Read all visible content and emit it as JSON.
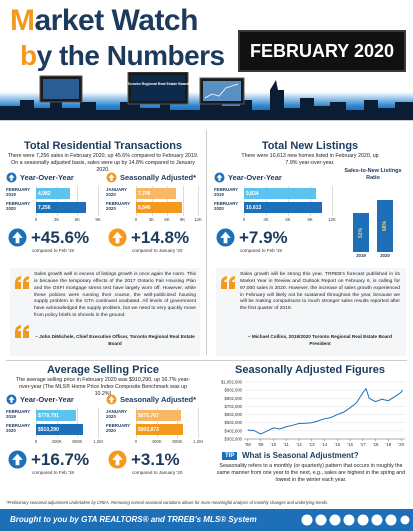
{
  "header": {
    "title_line1": "Market Watch",
    "title_line2": "by the Numbers",
    "date": "FEBRUARY 2020",
    "screen_text": "Toronto Regional Real Estate Board"
  },
  "transactions": {
    "title": "Total Residential Transactions",
    "description": "There were 7,256 sales in February 2020, up 45.6% compared to February 2019. On a seasonally adjusted basis, sales were up by 14.8% compared to January 2020.",
    "charts": [
      {
        "type": "hbar",
        "title": "Year-Over-Year",
        "categories": [
          "FEBRUARY 2019",
          "FEBRUARY 2020"
        ],
        "values": [
          4982,
          7256
        ],
        "value_labels": [
          "4,982",
          "7,256"
        ],
        "colors": [
          "#5bc3ee",
          "#1d6fb8"
        ],
        "xlim": [
          0,
          9000
        ],
        "xticks": [
          0,
          {
            "value": 3000,
            "label": "3K"
          },
          {
            "value": 6000,
            "label": "6K"
          },
          {
            "value": 9000,
            "label": "9K"
          }
        ],
        "change": "+45.6%",
        "change_note": "compared to Feb '19"
      },
      {
        "type": "hbar",
        "title": "Seasonally Adjusted*",
        "categories": [
          "JANUARY 2020",
          "FEBRUARY 2020"
        ],
        "values": [
          7706,
          8846
        ],
        "value_labels": [
          "7,706",
          "8,846"
        ],
        "colors": [
          "#f7b765",
          "#f39a1e"
        ],
        "xlim": [
          0,
          12000
        ],
        "xticks": [
          0,
          {
            "value": 3000,
            "label": "3K"
          },
          {
            "value": 6000,
            "label": "6K"
          },
          {
            "value": 9000,
            "label": "9K"
          },
          {
            "value": 12000,
            "label": "12K"
          }
        ],
        "change": "+14.8%",
        "change_note": "compared to January '20"
      }
    ],
    "quote": {
      "text": "Sales growth well in excess of listings growth is once again the norm. This is because the temporary effects of the 2017 Ontario Fair Housing Plan and the OSFI mortgage stress test have largely worn off. However, while these policies were running their course, the well-publicized housing supply problem in the GTA continued unabated. All levels of government have acknowledged the supply problem, but we need to very quickly move from policy briefs to shovels in the ground.",
      "author": "– John DiMichele, Chief Executive Officer, Toronto Regional Real Estate Board"
    }
  },
  "listings": {
    "title": "Total New Listings",
    "description": "There were 10,613 new homes listed in February 2020, up 7.9% year-over-year.",
    "charts": [
      {
        "type": "hbar",
        "title": "Year-Over-Year",
        "categories": [
          "FEBRUARY 2019",
          "FEBRUARY 2020"
        ],
        "values": [
          9834,
          10613
        ],
        "value_labels": [
          "9,834",
          "10,613"
        ],
        "colors": [
          "#5bc3ee",
          "#1d6fb8"
        ],
        "xlim": [
          0,
          12000
        ],
        "xticks": [
          0,
          {
            "value": 3000,
            "label": "3K"
          },
          {
            "value": 6000,
            "label": "6K"
          },
          {
            "value": 9000,
            "label": "9K"
          },
          {
            "value": 12000,
            "label": "12K"
          }
        ],
        "change": "+7.9%",
        "change_note": "compared to Feb '19"
      },
      {
        "type": "vbar",
        "title": "Sales-to-New Listings Ratio",
        "categories": [
          "2019",
          "2020"
        ],
        "values": [
          51,
          68
        ],
        "value_labels": [
          "51%",
          "68%"
        ],
        "colors": [
          "#1d6fb8",
          "#1d6fb8"
        ],
        "ylim": [
          0,
          100
        ]
      }
    ],
    "quote": {
      "text": "Sales growth will be strong this year. TRREB's forecast published in its Market Year in Review and Outlook Report on February 6, is calling for 97,000 sales in 2020. However, the increase of sales growth experienced in February will likely not be sustained throughout the year, because we will be making comparisons to much stronger sales results reported after the first quarter of 2019.",
      "author": "– Michael Collins, 2019/2020 Toronto Regional Real Estate Board President"
    }
  },
  "price": {
    "title": "Average Selling Price",
    "description": "The average selling price in February 2020 was $910,290, up 16.7% year-over-year (The MLS® Home Price Index Composite Benchmark was up 10.2%)",
    "charts": [
      {
        "type": "hbar",
        "title": "Year-Over-Year",
        "categories": [
          "FEBRUARY 2019",
          "FEBRUARY 2020"
        ],
        "values": [
          779791,
          910290
        ],
        "value_labels": [
          "$779,791",
          "$910,290"
        ],
        "colors": [
          "#5bc3ee",
          "#1d6fb8"
        ],
        "xlim": [
          0,
          1200000
        ],
        "xticks": [
          0,
          {
            "value": 400000,
            "label": "400K"
          },
          {
            "value": 800000,
            "label": "800K"
          },
          {
            "value": 1200000,
            "label": "1.2M"
          }
        ],
        "change": "+16.7%",
        "change_note": "compared to Feb '19"
      },
      {
        "type": "hbar",
        "title": "Seasonally Adjusted*",
        "categories": [
          "JANUARY 2020",
          "FEBRUARY 2020"
        ],
        "values": [
          875767,
          902873
        ],
        "value_labels": [
          "$875,767",
          "$902,873"
        ],
        "colors": [
          "#f7b765",
          "#f39a1e"
        ],
        "xlim": [
          0,
          1200000
        ],
        "xticks": [
          0,
          {
            "value": 400000,
            "label": "400K"
          },
          {
            "value": 800000,
            "label": "800K"
          },
          {
            "value": 1200000,
            "label": "1.2M"
          }
        ],
        "change": "+3.1%",
        "change_note": "compared to January '20"
      }
    ]
  },
  "seasonal": {
    "title": "Seasonally Adjusted Figures",
    "chart": {
      "type": "line",
      "color": "#1d6fb8",
      "x": [
        2008,
        2008.5,
        2009,
        2009.5,
        2010,
        2010.5,
        2011,
        2011.5,
        2012,
        2012.5,
        2013,
        2013.5,
        2014,
        2014.5,
        2015,
        2015.5,
        2016,
        2016.5,
        2017,
        2017.25,
        2017.5,
        2018,
        2018.5,
        2019,
        2019.5,
        2020,
        2020.1
      ],
      "values": [
        412000,
        405000,
        362000,
        400000,
        438000,
        425000,
        452000,
        470000,
        492000,
        495000,
        502000,
        525000,
        550000,
        565000,
        602000,
        632000,
        685000,
        745000,
        870000,
        920000,
        800000,
        762000,
        790000,
        772000,
        822000,
        875767,
        902873
      ],
      "xlim": [
        2007.7,
        2020.3
      ],
      "xticks": [
        {
          "value": 2008,
          "label": "'08"
        },
        {
          "value": 2009,
          "label": "'09"
        },
        {
          "value": 2010,
          "label": "'10"
        },
        {
          "value": 2011,
          "label": "'11"
        },
        {
          "value": 2012,
          "label": "'12"
        },
        {
          "value": 2013,
          "label": "'13"
        },
        {
          "value": 2014,
          "label": "'14"
        },
        {
          "value": 2015,
          "label": "'15"
        },
        {
          "value": 2016,
          "label": "'16"
        },
        {
          "value": 2017,
          "label": "'17"
        },
        {
          "value": 2018,
          "label": "'18"
        },
        {
          "value": 2019,
          "label": "'19"
        },
        {
          "value": 2020,
          "label": "'20"
        }
      ],
      "ylim": [
        302000,
        1002000
      ],
      "yticks": [
        {
          "value": 302000,
          "label": "$302,000"
        },
        {
          "value": 402000,
          "label": "$402,000"
        },
        {
          "value": 502000,
          "label": "$502,000"
        },
        {
          "value": 602000,
          "label": "$602,000"
        },
        {
          "value": 702000,
          "label": "$702,000"
        },
        {
          "value": 802000,
          "label": "$802,000"
        },
        {
          "value": 902000,
          "label": "$902,000"
        },
        {
          "value": 1002000,
          "label": "$1,002,000"
        }
      ]
    },
    "tip_badge": "TIP",
    "tip_title": "What is Seasonal Adjustment?",
    "tip_text": "Seasonality refers to a monthly (or quarterly) pattern that occurs in roughly the same manner from one year to the next, e.g., sales are highest in the spring and lowest in the winter each year."
  },
  "footnote": "*Preliminary seasonal adjustment undertaken by CREA. Removing normal seasonal variations allows for more meaningful analysis of monthly changes and underlying trends.",
  "footer": "Brought to you by GTA REALTORS® and TRREB's MLS® System"
}
